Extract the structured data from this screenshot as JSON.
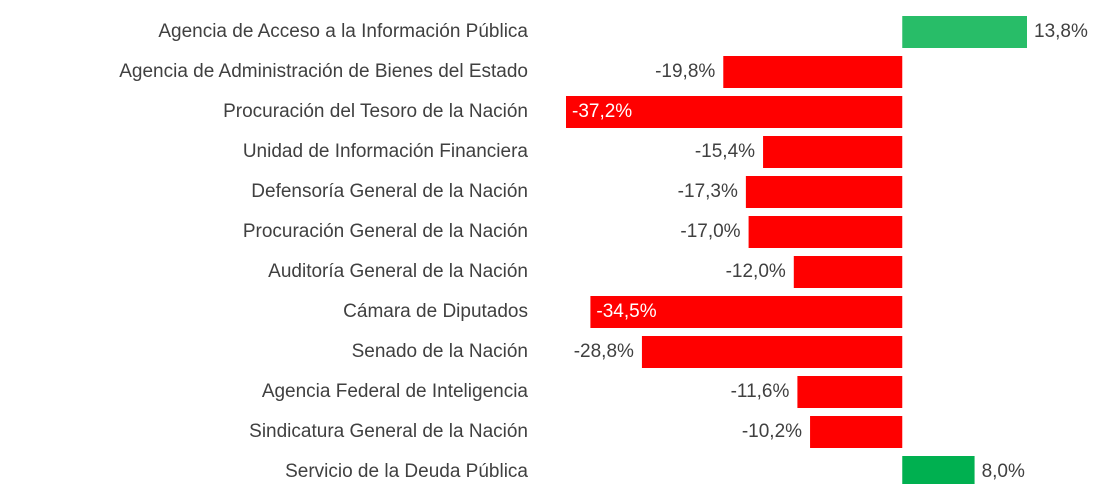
{
  "chart_data": {
    "type": "barh",
    "categories": [
      "Agencia de Acceso a la Información Pública",
      "Agencia de Administración de Bienes del Estado",
      "Procuración del Tesoro de la Nación",
      "Unidad de Información Financiera",
      "Defensoría General de la Nación",
      "Procuración General de la Nación",
      "Auditoría General de la Nación",
      "Cámara de Diputados",
      "Senado de la Nación",
      "Agencia Federal de Inteligencia",
      "Sindicatura General de la Nación",
      "Servicio de la Deuda Pública"
    ],
    "values": [
      13.8,
      -19.8,
      -37.2,
      -15.4,
      -17.3,
      -17.0,
      -12.0,
      -34.5,
      -28.8,
      -11.6,
      -10.2,
      8.0
    ],
    "value_labels": [
      "13,8%",
      "-19,8%",
      "-37,2%",
      "-15,4%",
      "-17,3%",
      "-17,0%",
      "-12,0%",
      "-34,5%",
      "-28,8%",
      "-11,6%",
      "-10,2%",
      "8,0%"
    ],
    "colors": [
      "#28bd68",
      "#ff0000",
      "#ff0000",
      "#ff0000",
      "#ff0000",
      "#ff0000",
      "#ff0000",
      "#ff0000",
      "#ff0000",
      "#ff0000",
      "#ff0000",
      "#00b050"
    ]
  }
}
